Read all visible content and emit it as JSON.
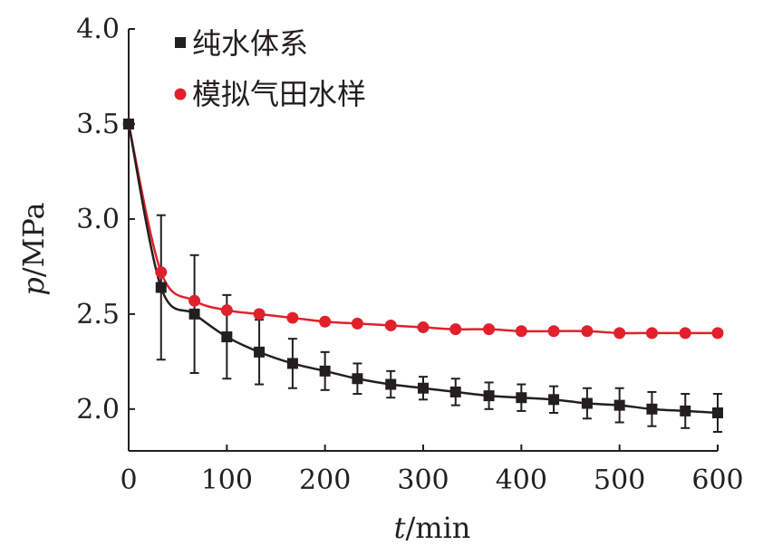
{
  "chart_data": {
    "type": "line",
    "xlabel": "t/min",
    "ylabel": "p/MPa",
    "xlim": [
      0,
      600
    ],
    "ylim": [
      1.78,
      4.0
    ],
    "xticks": [
      0,
      100,
      200,
      300,
      400,
      500,
      600
    ],
    "yticks": [
      2.0,
      2.5,
      3.0,
      3.5,
      4.0
    ],
    "xtick_labels": [
      "0",
      "100",
      "200",
      "300",
      "400",
      "500",
      "600"
    ],
    "ytick_labels": [
      "2.0",
      "2.5",
      "3.0",
      "3.5",
      "4.0"
    ],
    "legend_position": "top-left",
    "grid": false,
    "series": [
      {
        "name": "纯水体系",
        "marker": "square",
        "color": "#231f20",
        "x": [
          0,
          33,
          67,
          100,
          133,
          167,
          200,
          233,
          267,
          300,
          333,
          367,
          400,
          433,
          467,
          500,
          533,
          567,
          600
        ],
        "y": [
          3.5,
          2.64,
          2.5,
          2.38,
          2.3,
          2.24,
          2.2,
          2.16,
          2.13,
          2.11,
          2.09,
          2.07,
          2.06,
          2.05,
          2.03,
          2.02,
          2.0,
          1.99,
          1.98
        ],
        "error": [
          0,
          0.38,
          0.31,
          0.22,
          0.17,
          0.13,
          0.1,
          0.08,
          0.07,
          0.06,
          0.07,
          0.07,
          0.07,
          0.07,
          0.08,
          0.09,
          0.09,
          0.09,
          0.1
        ]
      },
      {
        "name": "模拟气田水样",
        "marker": "circle",
        "color": "#e0212b",
        "x": [
          0,
          33,
          67,
          100,
          133,
          167,
          200,
          233,
          267,
          300,
          333,
          367,
          400,
          433,
          467,
          500,
          533,
          567,
          600
        ],
        "y": [
          3.5,
          2.72,
          2.57,
          2.52,
          2.5,
          2.48,
          2.46,
          2.45,
          2.44,
          2.43,
          2.42,
          2.42,
          2.41,
          2.41,
          2.41,
          2.4,
          2.4,
          2.4,
          2.4
        ]
      }
    ]
  }
}
